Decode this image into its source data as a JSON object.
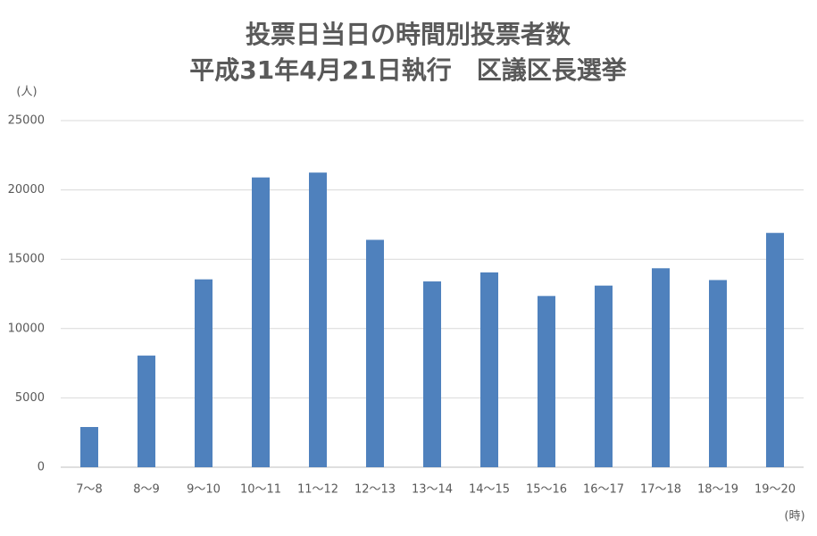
{
  "chart_data": {
    "type": "bar",
    "title": [
      "投票日当日の時間別投票者数",
      "平成31年4月21日執行　区議区長選挙"
    ],
    "y_axis_label": "(人)",
    "x_axis_label": "(時)",
    "categories": [
      "7〜8",
      "8〜9",
      "9〜10",
      "10〜11",
      "11〜12",
      "12〜13",
      "13〜14",
      "14〜15",
      "15〜16",
      "16〜17",
      "17〜18",
      "18〜19",
      "19〜20"
    ],
    "values": [
      2900,
      8050,
      13550,
      20900,
      21250,
      16400,
      13400,
      14050,
      12350,
      13100,
      14350,
      13500,
      16900
    ],
    "color": "#4f81bd",
    "ylim": [
      0,
      25000
    ],
    "yticks": [
      0,
      5000,
      10000,
      15000,
      20000,
      25000
    ],
    "grid": true
  }
}
